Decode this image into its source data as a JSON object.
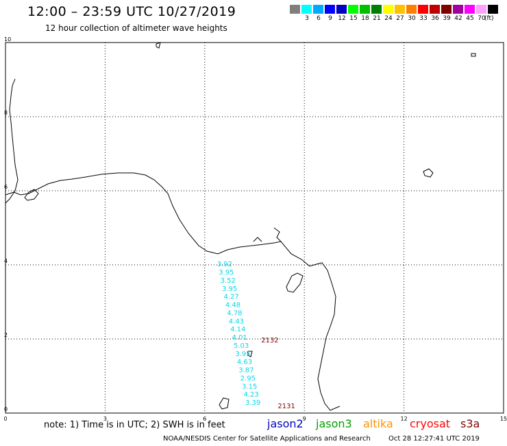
{
  "header": {
    "title": "12:00 – 23:59 UTC 10/27/2019",
    "subtitle": "12 hour collection of altimeter wave heights"
  },
  "legend": {
    "swatches": [
      {
        "color": "#7f7f7f",
        "label": ""
      },
      {
        "color": "#00ffff",
        "label": "3"
      },
      {
        "color": "#00a8ff",
        "label": "6"
      },
      {
        "color": "#0000ff",
        "label": "9"
      },
      {
        "color": "#0000c0",
        "label": "12"
      },
      {
        "color": "#00ff00",
        "label": "15"
      },
      {
        "color": "#00c000",
        "label": "18"
      },
      {
        "color": "#008000",
        "label": "21"
      },
      {
        "color": "#ffff00",
        "label": "24"
      },
      {
        "color": "#ffc000",
        "label": "27"
      },
      {
        "color": "#ff8000",
        "label": "30"
      },
      {
        "color": "#ff0000",
        "label": "33"
      },
      {
        "color": "#c00000",
        "label": "36"
      },
      {
        "color": "#800000",
        "label": "39"
      },
      {
        "color": "#a000a0",
        "label": "42"
      },
      {
        "color": "#ff00ff",
        "label": "45"
      },
      {
        "color": "#ffa0ff",
        "label": "70"
      },
      {
        "color": "#000000",
        "label": ""
      }
    ],
    "unit": "(ft)"
  },
  "axes": {
    "x_ticks": [
      "0",
      "3",
      "6",
      "9",
      "12",
      "15"
    ],
    "y_ticks": [
      "0",
      "2",
      "4",
      "6",
      "8",
      "10"
    ],
    "x_range": [
      0,
      15
    ],
    "y_range": [
      0,
      10
    ],
    "grid": true
  },
  "observations": {
    "color": "#00d8e8",
    "gray_color": "#7f7f7f",
    "points": [
      {
        "value": "3.92",
        "x": 6.6,
        "y": 3.96
      },
      {
        "value": "3.95",
        "x": 6.65,
        "y": 3.74
      },
      {
        "value": "3.52",
        "x": 6.7,
        "y": 3.52
      },
      {
        "value": "3.95",
        "x": 6.75,
        "y": 3.3
      },
      {
        "value": "4.27",
        "x": 6.8,
        "y": 3.08
      },
      {
        "value": "4.48",
        "x": 6.85,
        "y": 2.86
      },
      {
        "value": "4.78",
        "x": 6.9,
        "y": 2.64
      },
      {
        "value": "4.43",
        "x": 6.95,
        "y": 2.42
      },
      {
        "value": "4.14",
        "x": 7.0,
        "y": 2.2
      },
      {
        "value": "4.01",
        "x": 7.05,
        "y": 1.98
      },
      {
        "value": "5.03",
        "x": 7.1,
        "y": 1.76
      },
      {
        "value": "3.95",
        "x": 7.15,
        "y": 1.54
      },
      {
        "value": "4.63",
        "x": 7.2,
        "y": 1.32
      },
      {
        "value": "3.87",
        "x": 7.25,
        "y": 1.1
      },
      {
        "value": "2.95",
        "x": 7.3,
        "y": 0.88,
        "gray": true
      },
      {
        "value": "3.15",
        "x": 7.35,
        "y": 0.66
      },
      {
        "value": "4.23",
        "x": 7.4,
        "y": 0.44
      },
      {
        "value": "3.39",
        "x": 7.45,
        "y": 0.22
      }
    ],
    "pass_labels": [
      {
        "text": "2132",
        "x": 7.7,
        "y": 1.98
      },
      {
        "text": "2131",
        "x": 8.2,
        "y": 0.2
      }
    ]
  },
  "notes": {
    "text": "note:  1)  Time is in UTC;  2)  SWH is in feet"
  },
  "satellites": [
    {
      "name": "jason2",
      "color": "#0000c0"
    },
    {
      "name": "jason3",
      "color": "#00a000"
    },
    {
      "name": "altika",
      "color": "#ff9000"
    },
    {
      "name": "cryosat",
      "color": "#ff0000"
    },
    {
      "name": "s3a",
      "color": "#800000"
    }
  ],
  "footer": {
    "credit": "NOAA/NESDIS Center for Satellite Applications and Research",
    "timestamp": "Oct 28 12:27:41 UTC 2019"
  }
}
